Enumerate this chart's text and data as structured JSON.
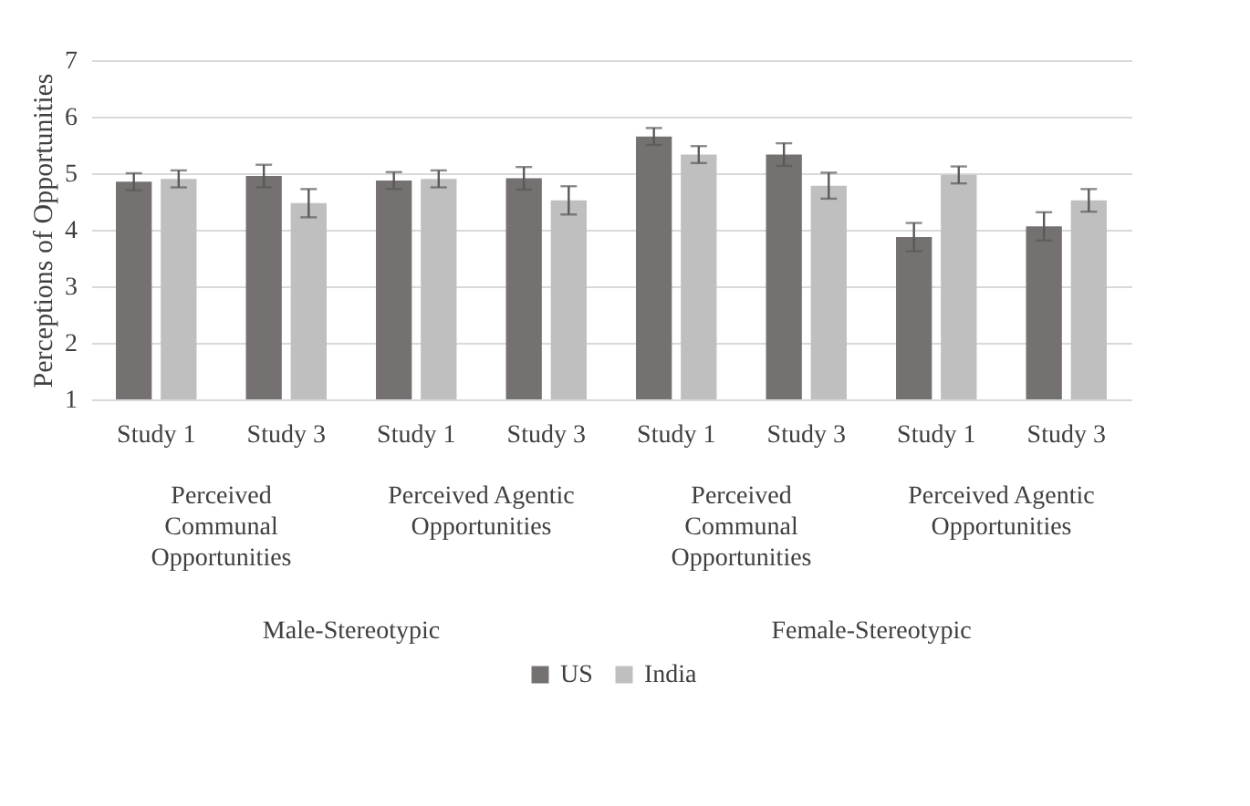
{
  "chart_data": {
    "type": "bar",
    "ylabel": "Perceptions of Opportunities",
    "categories": [
      "Study 1",
      "Study 3",
      "Study 1",
      "Study 3",
      "Study 1",
      "Study 3",
      "Study 1",
      "Study 3"
    ],
    "series": [
      {
        "name": "US",
        "color": "#767171",
        "values": [
          4.85,
          4.95,
          4.87,
          4.91,
          5.65,
          5.33,
          3.87,
          4.06
        ],
        "errors": [
          0.15,
          0.2,
          0.15,
          0.2,
          0.15,
          0.2,
          0.25,
          0.25
        ]
      },
      {
        "name": "India",
        "color": "#bfbfbf",
        "values": [
          4.9,
          4.47,
          4.9,
          4.52,
          5.33,
          4.78,
          4.97,
          4.52
        ],
        "errors": [
          0.15,
          0.25,
          0.15,
          0.25,
          0.15,
          0.23,
          0.15,
          0.2
        ]
      }
    ],
    "annotations": [
      "Perceived Communal Opportunities",
      "Perceived Agentic Opportunities",
      "Perceived Communal Opportunities",
      "Perceived Agentic Opportunities",
      "Male-Stereotypic",
      "Female-Stereotypic"
    ],
    "ylim": [
      1,
      7
    ],
    "yticks": [
      1,
      2,
      3,
      4,
      5,
      6,
      7
    ],
    "grid": "y",
    "legend": "bottom"
  }
}
